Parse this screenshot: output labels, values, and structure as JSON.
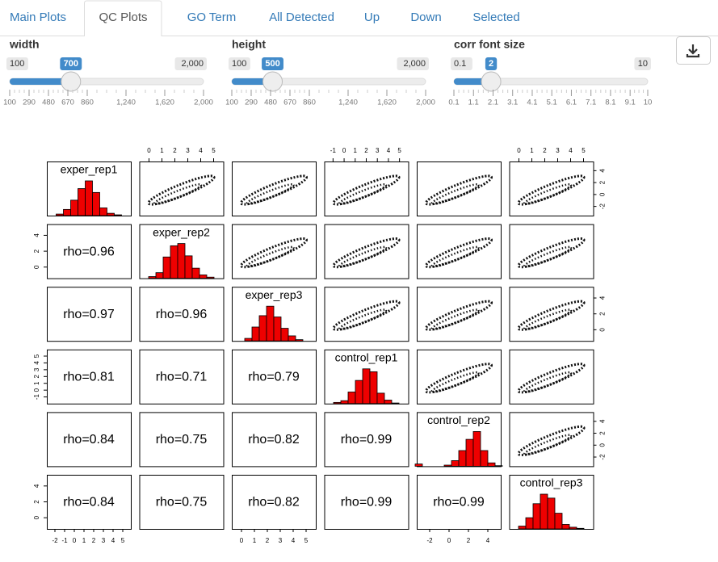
{
  "tabs": [
    "Main Plots",
    "QC Plots",
    "GO Term",
    "All Detected",
    "Up",
    "Down",
    "Selected"
  ],
  "active_tab": 1,
  "sliders": [
    {
      "label": "width",
      "min": 100,
      "max": {
        "value": 2000,
        "label": "2,000"
      },
      "value": 700,
      "ticks": [
        100,
        290,
        480,
        670,
        860,
        {
          "value": 1240,
          "label": "1,240"
        },
        {
          "value": 1620,
          "label": "1,620"
        },
        {
          "value": 2000,
          "label": "2,000"
        }
      ]
    },
    {
      "label": "height",
      "min": 100,
      "max": {
        "value": 2000,
        "label": "2,000"
      },
      "value": 500,
      "ticks": [
        100,
        290,
        480,
        670,
        860,
        {
          "value": 1240,
          "label": "1,240"
        },
        {
          "value": 1620,
          "label": "1,620"
        },
        {
          "value": 2000,
          "label": "2,000"
        }
      ]
    },
    {
      "label": "corr font size",
      "min": 0.1,
      "max": 10,
      "value": 2,
      "ticks": [
        0.1,
        1.1,
        2.1,
        3.1,
        4.1,
        5.1,
        6.1,
        7.1,
        8.1,
        9.1,
        10
      ]
    }
  ],
  "pairs": {
    "names": [
      "exper_rep1",
      "exper_rep2",
      "exper_rep3",
      "control_rep1",
      "control_rep2",
      "control_rep3"
    ],
    "histograms": [
      [
        2,
        8,
        20,
        35,
        45,
        30,
        10,
        3,
        1
      ],
      [
        3,
        10,
        38,
        58,
        62,
        40,
        18,
        6,
        2
      ],
      [
        4,
        22,
        40,
        55,
        38,
        20,
        8,
        2
      ],
      [
        2,
        5,
        20,
        40,
        60,
        55,
        18,
        6,
        1
      ],
      [
        4,
        0,
        0,
        0,
        2,
        10,
        28,
        48,
        62,
        28,
        6,
        1
      ],
      [
        5,
        20,
        45,
        62,
        55,
        28,
        8,
        3,
        1
      ]
    ],
    "correlations": [
      [
        null,
        null,
        null,
        null,
        null
      ],
      [
        "rho=0.96"
      ],
      [
        "rho=0.97",
        "rho=0.96"
      ],
      [
        "rho=0.81",
        "rho=0.71",
        "rho=0.79"
      ],
      [
        "rho=0.84",
        "rho=0.75",
        "rho=0.82",
        "rho=0.99"
      ],
      [
        "rho=0.84",
        "rho=0.75",
        "rho=0.82",
        "rho=0.99",
        "rho=0.99"
      ]
    ],
    "top_axes": {
      "1": [
        0,
        1,
        2,
        3,
        4,
        5
      ],
      "3": [
        -1,
        0,
        1,
        2,
        3,
        4,
        5
      ],
      "5": [
        0,
        1,
        2,
        3,
        4,
        5
      ]
    },
    "right_axes": {
      "0": [
        -2,
        0,
        2,
        4
      ],
      "2": [
        0,
        2,
        4
      ],
      "4": [
        -2,
        0,
        2,
        4
      ]
    },
    "left_axes": {
      "1": [
        0,
        2,
        4
      ],
      "3": [
        -1,
        0,
        1,
        2,
        3,
        4,
        5
      ],
      "5": [
        0,
        2,
        4
      ]
    },
    "bottom_axes": {
      "0": [
        -2,
        -1,
        0,
        1,
        2,
        3,
        4,
        5
      ],
      "2": [
        0,
        1,
        2,
        3,
        4,
        5
      ],
      "4": [
        -2,
        0,
        2,
        4
      ]
    }
  }
}
